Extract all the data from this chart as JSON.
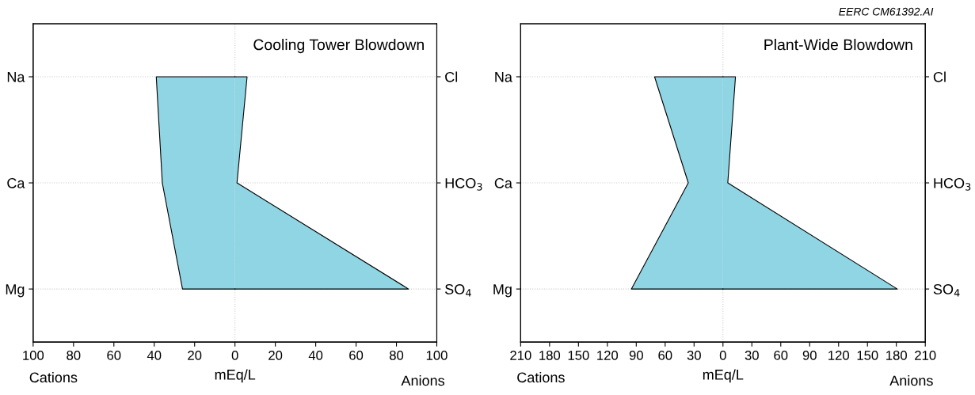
{
  "chart_data": [
    {
      "type": "area",
      "orientation": "horizontal",
      "title": "Cooling Tower Blowdown",
      "xlabel": "mEq/L",
      "categories": [
        "Na",
        "Ca",
        "Mg"
      ],
      "y2_categories": [
        "Cl",
        "HCO$_{3}$",
        "SO$_{4}$"
      ],
      "series": [
        {
          "color": "#8fd5e3",
          "values": [
            -39,
            -36,
            -26
          ]
        },
        {
          "color": "#8fd5e3",
          "values": [
            6,
            1,
            86
          ]
        }
      ],
      "xlim": [
        -100,
        100
      ],
      "xticks": [
        {
          "value": -100,
          "label": "100"
        },
        {
          "value": -80,
          "label": "80"
        },
        {
          "value": -60,
          "label": "60"
        },
        {
          "value": -40,
          "label": "40"
        },
        {
          "value": -20,
          "label": "20"
        },
        0,
        20,
        40,
        60,
        80,
        100
      ],
      "grid": "y",
      "ref_lines": [
        {
          "axis": "x",
          "value": 0,
          "line_style": "dotted",
          "color": "#cccccc"
        }
      ],
      "annotations": [
        "Cations",
        "Anions"
      ]
    },
    {
      "type": "area",
      "orientation": "horizontal",
      "title": "Plant-Wide Blowdown",
      "xlabel": "mEq/L",
      "categories": [
        "Na",
        "Ca",
        "Mg"
      ],
      "y2_categories": [
        "Cl",
        "HCO$_{3}$",
        "SO$_{4}$"
      ],
      "series": [
        {
          "color": "#8fd5e3",
          "values": [
            -71,
            -36,
            -95
          ]
        },
        {
          "color": "#8fd5e3",
          "values": [
            13,
            5,
            181
          ]
        }
      ],
      "xlim": [
        -210,
        210
      ],
      "xticks": [
        {
          "value": -210,
          "label": "210"
        },
        {
          "value": -180,
          "label": "180"
        },
        {
          "value": -150,
          "label": "150"
        },
        {
          "value": -120,
          "label": "120"
        },
        {
          "value": -90,
          "label": "90"
        },
        {
          "value": -60,
          "label": "60"
        },
        {
          "value": -30,
          "label": "30"
        },
        0,
        30,
        60,
        90,
        120,
        150,
        180,
        210
      ],
      "grid": "y",
      "ref_lines": [
        {
          "axis": "x",
          "value": 0,
          "line_style": "dotted",
          "color": "#cccccc"
        }
      ],
      "annotations": [
        "Cations",
        "Anions",
        "EERC CM61392.AI"
      ]
    }
  ]
}
